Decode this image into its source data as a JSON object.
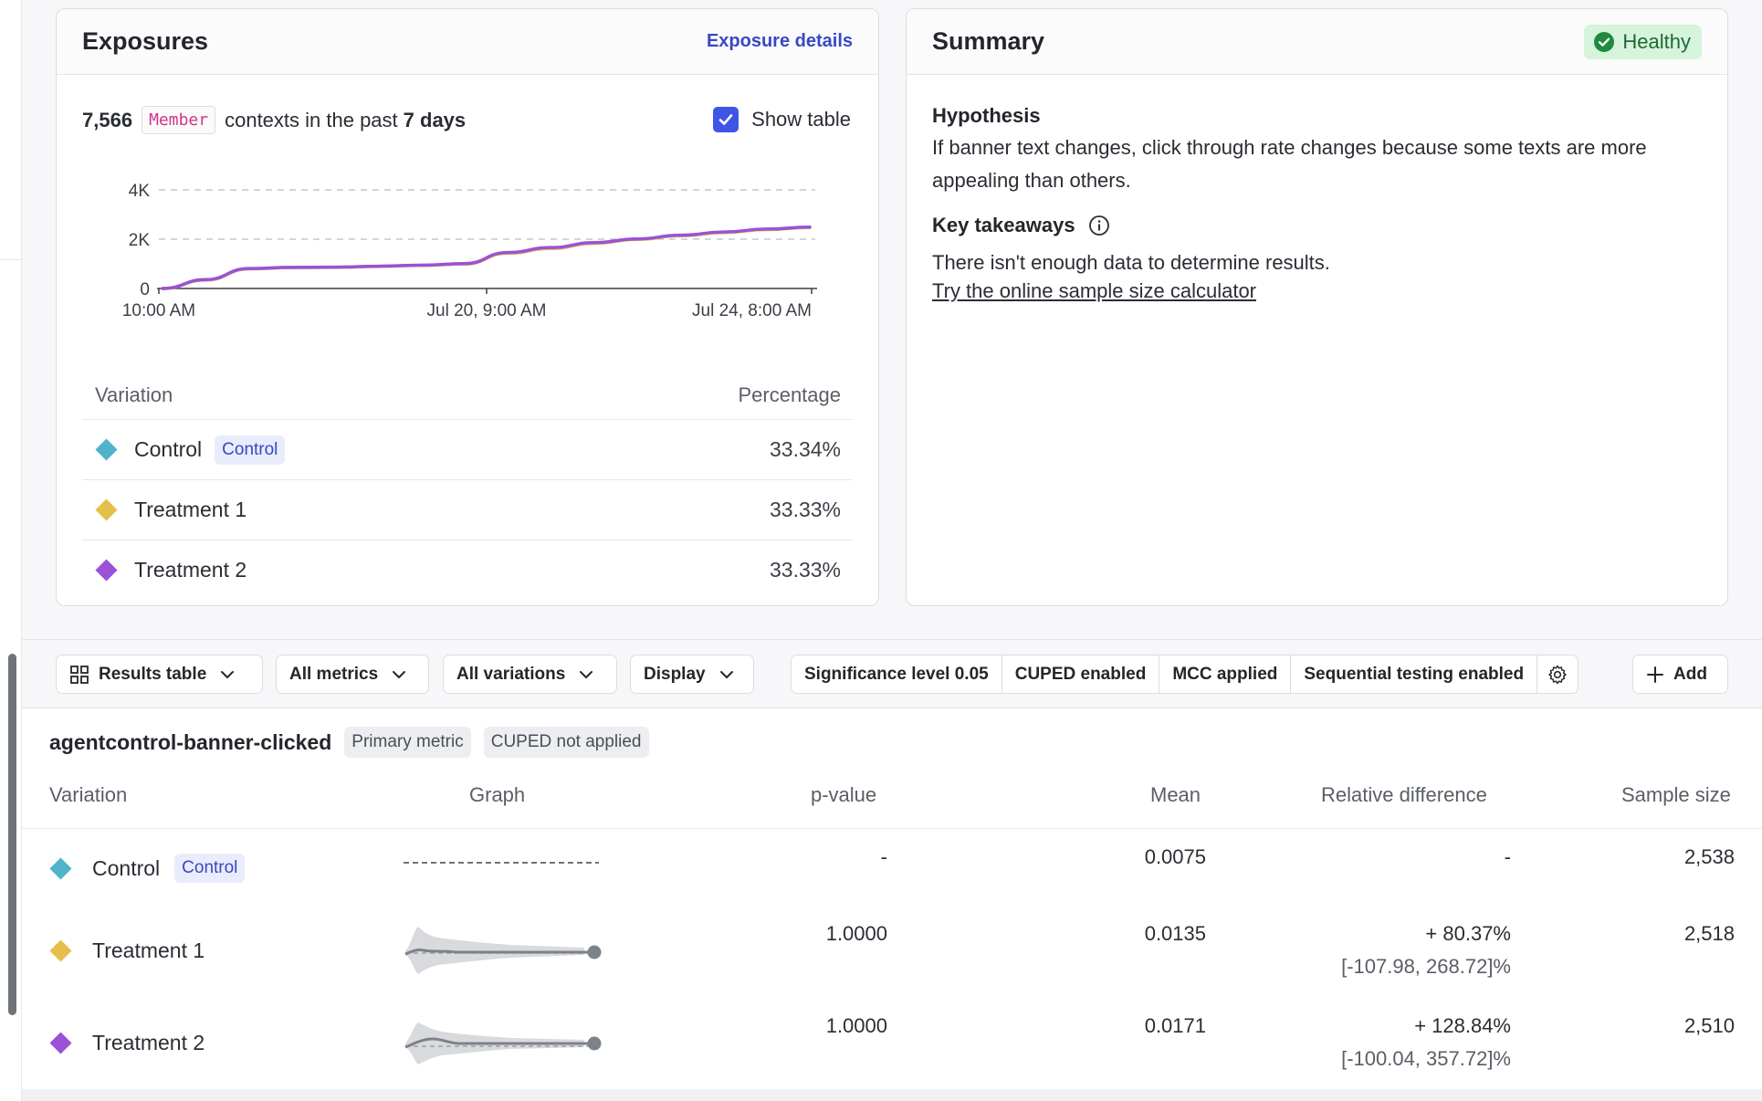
{
  "colors": {
    "control": "#4fb3c9",
    "treatment1": "#e6be4b",
    "treatment2": "#9a52d6",
    "accent": "#3f55e6",
    "healthy_bg": "#d6f3dc"
  },
  "exposures": {
    "title": "Exposures",
    "details_link": "Exposure details",
    "count": "7,566",
    "context_kind": "Member",
    "text_mid": "contexts in the past",
    "period": "7 days",
    "show_table_label": "Show table",
    "show_table_checked": true,
    "chart_data": {
      "type": "line",
      "y_ticks": [
        "4K",
        "2K",
        "0"
      ],
      "x_ticks": [
        "10:00 AM",
        "Jul 20, 9:00 AM",
        "Jul 24, 8:00 AM"
      ],
      "ylim": [
        0,
        4000
      ],
      "grid": true,
      "series": [
        {
          "name": "Control",
          "color": "#4fb3c9",
          "values": [
            0,
            350,
            800,
            850,
            860,
            900,
            940,
            1000,
            1450,
            1650,
            1850,
            2000,
            2150,
            2280,
            2400,
            2480
          ]
        },
        {
          "name": "Treatment 1",
          "color": "#e6be4b",
          "values": [
            0,
            340,
            790,
            845,
            855,
            895,
            935,
            990,
            1430,
            1620,
            1830,
            1990,
            2140,
            2270,
            2390,
            2470
          ]
        },
        {
          "name": "Treatment 2",
          "color": "#9a52d6",
          "values": [
            0,
            360,
            810,
            855,
            865,
            905,
            945,
            1010,
            1460,
            1660,
            1860,
            2010,
            2160,
            2290,
            2410,
            2490
          ]
        }
      ]
    },
    "table": {
      "col_variation": "Variation",
      "col_percentage": "Percentage",
      "rows": [
        {
          "name": "Control",
          "badge": "Control",
          "pct": "33.34%"
        },
        {
          "name": "Treatment 1",
          "pct": "33.33%"
        },
        {
          "name": "Treatment 2",
          "pct": "33.33%"
        }
      ]
    }
  },
  "summary": {
    "title": "Summary",
    "status": "Healthy",
    "hypothesis_heading": "Hypothesis",
    "hypothesis_text": "If banner text changes, click through rate changes because some texts are more appealing than others.",
    "takeaways_heading": "Key takeaways",
    "takeaways_text": "There isn't enough data to determine results.",
    "calculator_link": "Try the online sample size calculator"
  },
  "toolbar": {
    "results_table": "Results table",
    "all_metrics": "All metrics",
    "all_variations": "All variations",
    "display": "Display",
    "significance": "Significance level 0.05",
    "cuped": "CUPED enabled",
    "mcc": "MCC applied",
    "sequential": "Sequential testing enabled",
    "add": "Add"
  },
  "results": {
    "metric_name": "agentcontrol-banner-clicked",
    "primary_chip": "Primary metric",
    "cuped_chip": "CUPED not applied",
    "headers": {
      "variation": "Variation",
      "graph": "Graph",
      "pvalue": "p-value",
      "mean": "Mean",
      "reldiff": "Relative difference",
      "sample": "Sample size"
    },
    "rows": [
      {
        "name": "Control",
        "badge": "Control",
        "pvalue": "-",
        "mean": "0.0075",
        "rel": "-",
        "ci": "",
        "sample": "2,538"
      },
      {
        "name": "Treatment 1",
        "pvalue": "1.0000",
        "mean": "0.0135",
        "rel": "+ 80.37%",
        "ci": "[-107.98, 268.72]%",
        "sample": "2,518"
      },
      {
        "name": "Treatment 2",
        "pvalue": "1.0000",
        "mean": "0.0171",
        "rel": "+ 128.84%",
        "ci": "[-100.04, 357.72]%",
        "sample": "2,510"
      }
    ]
  }
}
